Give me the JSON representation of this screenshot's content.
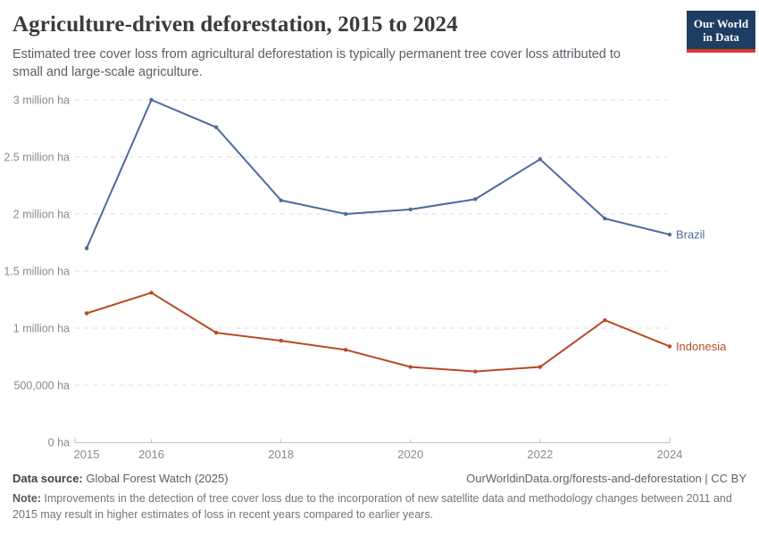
{
  "header": {
    "title": "Agriculture-driven deforestation, 2015 to 2024",
    "subtitle": "Estimated tree cover loss from agricultural deforestation is typically permanent tree cover loss attributed to small and large-scale agriculture.",
    "logo": {
      "line1": "Our World",
      "line2": "in Data",
      "bg_color": "#1d3d63",
      "accent_color": "#d93b2b"
    }
  },
  "chart_data": {
    "type": "line",
    "title": "Agriculture-driven deforestation, 2015 to 2024",
    "xlabel": "",
    "ylabel": "",
    "unit": "ha",
    "grid": true,
    "legend_position": "end-of-line",
    "x": [
      2015,
      2016,
      2017,
      2018,
      2019,
      2020,
      2021,
      2022,
      2023,
      2024
    ],
    "series": [
      {
        "name": "Brazil",
        "color": "#4C6A9C",
        "values": [
          1700000,
          3000000,
          2760000,
          2120000,
          2000000,
          2040000,
          2130000,
          2480000,
          1960000,
          1820000
        ]
      },
      {
        "name": "Indonesia",
        "color": "#B84A26",
        "values": [
          1130000,
          1310000,
          960000,
          890000,
          810000,
          660000,
          620000,
          660000,
          1070000,
          840000
        ]
      }
    ],
    "ylim": [
      0,
      3000000
    ],
    "y_ticks": [
      {
        "value": 0,
        "label": "0 ha"
      },
      {
        "value": 500000,
        "label": "500,000 ha"
      },
      {
        "value": 1000000,
        "label": "1 million ha"
      },
      {
        "value": 1500000,
        "label": "1.5 million ha"
      },
      {
        "value": 2000000,
        "label": "2 million ha"
      },
      {
        "value": 2500000,
        "label": "2.5 million ha"
      },
      {
        "value": 3000000,
        "label": "3 million ha"
      }
    ],
    "x_ticks": [
      {
        "value": 2015,
        "label": "2015"
      },
      {
        "value": 2016,
        "label": "2016"
      },
      {
        "value": 2018,
        "label": "2018"
      },
      {
        "value": 2020,
        "label": "2020"
      },
      {
        "value": 2022,
        "label": "2022"
      },
      {
        "value": 2024,
        "label": "2024"
      }
    ],
    "colors": {
      "gridline": "#dcdcdc",
      "axis": "#c2c2c2",
      "tick_label": "#8a8a8a"
    }
  },
  "footer": {
    "datasource_label": "Data source:",
    "datasource_value": " Global Forest Watch (2025)",
    "url_text": "OurWorldinData.org/forests-and-deforestation | CC BY",
    "note_label": "Note:",
    "note_text": " Improvements in the detection of tree cover loss due to the incorporation of new satellite data and methodology changes between 2011 and 2015 may result in higher estimates of loss in recent years compared to earlier years."
  }
}
